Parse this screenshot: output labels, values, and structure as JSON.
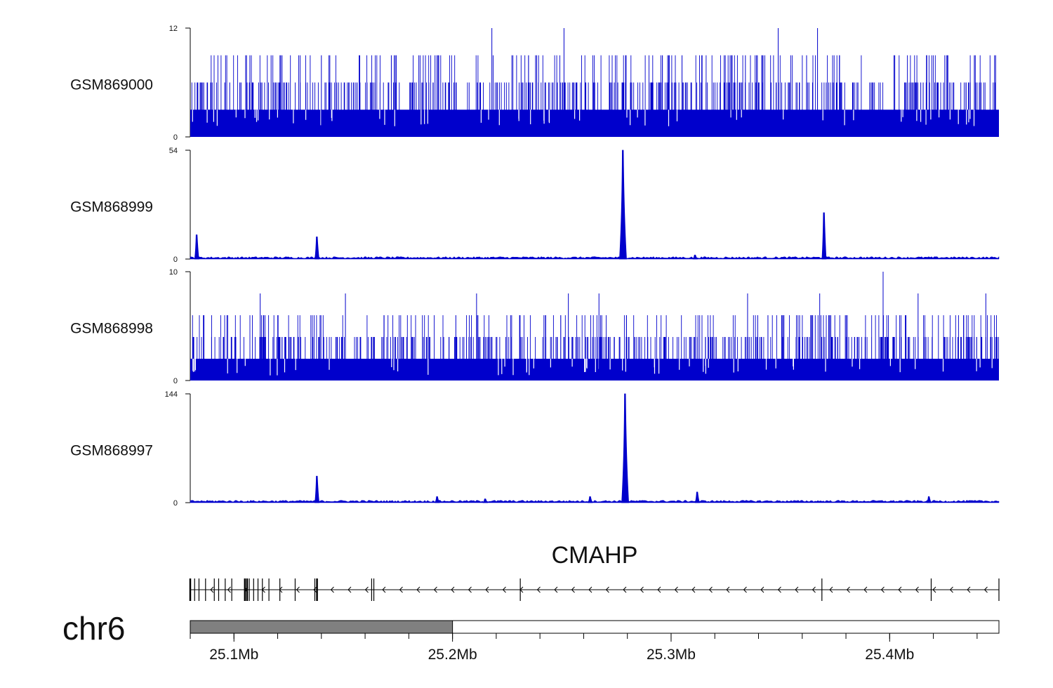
{
  "chart_data": {
    "type": "area",
    "x_range_mb": [
      25.08,
      25.45
    ],
    "series_color": "#0000cc",
    "tracks": [
      {
        "name": "GSM869000",
        "ymax": 12,
        "ymin": 0,
        "kind": "noise",
        "baseline": 3,
        "levels": [
          6,
          9
        ],
        "spikes": [
          [
            25.218,
            12
          ],
          [
            25.251,
            12
          ],
          [
            25.349,
            12
          ],
          [
            25.367,
            12
          ],
          [
            25.117,
            9
          ],
          [
            25.122,
            9
          ],
          [
            25.14,
            9
          ],
          [
            25.172,
            9
          ],
          [
            25.192,
            9
          ],
          [
            25.238,
            9
          ],
          [
            25.305,
            9
          ],
          [
            25.327,
            9
          ],
          [
            25.334,
            9
          ],
          [
            25.362,
            9
          ],
          [
            25.377,
            9
          ],
          [
            25.402,
            9
          ],
          [
            25.417,
            9
          ],
          [
            25.448,
            9
          ]
        ]
      },
      {
        "name": "GSM868999",
        "ymax": 54,
        "ymin": 0,
        "kind": "peaks",
        "peaks": [
          [
            25.083,
            12
          ],
          [
            25.138,
            11
          ],
          [
            25.278,
            54
          ],
          [
            25.37,
            23
          ],
          [
            25.311,
            2
          ]
        ]
      },
      {
        "name": "GSM868998",
        "ymax": 10,
        "ymin": 0,
        "kind": "noise",
        "baseline": 2,
        "levels": [
          4,
          6
        ],
        "spikes": [
          [
            25.397,
            10
          ],
          [
            25.112,
            8
          ],
          [
            25.151,
            8
          ],
          [
            25.211,
            8
          ],
          [
            25.253,
            8
          ],
          [
            25.267,
            8
          ],
          [
            25.335,
            8
          ],
          [
            25.368,
            8
          ],
          [
            25.413,
            8
          ],
          [
            25.444,
            8
          ]
        ]
      },
      {
        "name": "GSM868997",
        "ymax": 144,
        "ymin": 0,
        "kind": "peaks",
        "peaks": [
          [
            25.138,
            35
          ],
          [
            25.193,
            8
          ],
          [
            25.215,
            5
          ],
          [
            25.263,
            8
          ],
          [
            25.279,
            144
          ],
          [
            25.312,
            14
          ],
          [
            25.418,
            8
          ]
        ]
      }
    ],
    "gene": {
      "name": "CMAHP",
      "start_mb": 25.08,
      "end_mb": 25.45,
      "strand": "-",
      "exons_mb": [
        25.08,
        25.082,
        25.084,
        25.087,
        25.091,
        25.093,
        25.096,
        25.099,
        25.105,
        25.106,
        25.107,
        25.109,
        25.111,
        25.113,
        25.116,
        25.121,
        25.128,
        25.137,
        25.138,
        25.163,
        25.164,
        25.231,
        25.369,
        25.419,
        25.45
      ]
    },
    "ideogram": {
      "chromosome": "chr6",
      "highlight_mb": [
        25.08,
        25.2
      ],
      "tick_labels": [
        "25.1Mb",
        "25.2Mb",
        "25.3Mb",
        "25.4Mb"
      ],
      "tick_values_mb": [
        25.1,
        25.2,
        25.3,
        25.4
      ],
      "minor_tick_step_mb": 0.02
    }
  }
}
